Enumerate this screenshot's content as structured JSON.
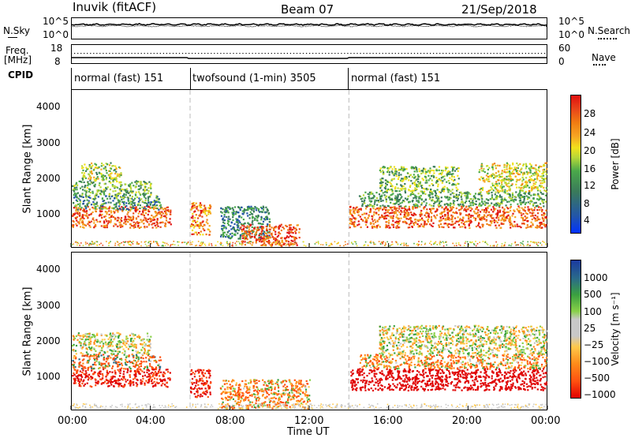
{
  "header": {
    "station": "Inuvik (fitACF)",
    "beam": "Beam 07",
    "date": "21/Sep/2018"
  },
  "top_panels": {
    "nsky_label": "N.Sky",
    "nsky_ticks": [
      "10^5",
      "10^0"
    ],
    "nsearch_label": "N.Search",
    "nsearch_ticks": [
      "10^5",
      "10^0"
    ],
    "freq_label_1": "Freq.",
    "freq_label_2": "[MHz]",
    "freq_ticks": [
      "18",
      "8"
    ],
    "nave_label": "Nave",
    "nave_ticks": [
      "60",
      "0"
    ],
    "cpid_label": "CPID"
  },
  "modes": [
    {
      "name": "normal (fast) 151",
      "start": "00:00",
      "end": "06:00"
    },
    {
      "name": "twofsound (1-min) 3505",
      "start": "06:00",
      "end": "14:00"
    },
    {
      "name": "normal (fast) 151",
      "start": "14:00",
      "end": "24:00"
    }
  ],
  "colors": {
    "power_scale": [
      "#0033ff",
      "#2255aa",
      "#3a7a5a",
      "#4aa84a",
      "#b8d838",
      "#f2e11c",
      "#f6a623",
      "#f07d12",
      "#e8461a",
      "#e0100f"
    ],
    "velocity_scale": [
      "#e00000",
      "#ff5010",
      "#ff8c1a",
      "#ffc84a",
      "#c8c8c8",
      "#c8c8c8",
      "#88d048",
      "#3aa040",
      "#2a6a8a",
      "#1a3aa0"
    ]
  },
  "chart_data": [
    {
      "type": "heatmap",
      "panel": "power",
      "ylabel": "Slant Range [km]",
      "yticks": [
        "4000",
        "3000",
        "2000",
        "1000"
      ],
      "ylim": [
        150,
        4500
      ],
      "xlabel": "Time UT",
      "xticks": [
        "00:00",
        "04:00",
        "08:00",
        "12:00",
        "16:00",
        "20:00",
        "00:00"
      ],
      "xlim": [
        0,
        24
      ],
      "colorbar_label": "Power [dB]",
      "colorbar_ticks": [
        "28",
        "24",
        "20",
        "16",
        "12",
        "8",
        "4"
      ],
      "clim": [
        0,
        30
      ],
      "scatter_bands": [
        {
          "t0": 0.0,
          "t1": 5.0,
          "r0": 700,
          "r1": 1300,
          "v0": 18,
          "v1": 30
        },
        {
          "t0": 0.0,
          "t1": 4.5,
          "r0": 1200,
          "r1": 1600,
          "v0": 4,
          "v1": 14
        },
        {
          "t0": 0.0,
          "t1": 4.0,
          "r0": 1600,
          "r1": 2000,
          "v0": 6,
          "v1": 16
        },
        {
          "t0": 0.5,
          "t1": 2.5,
          "r0": 2000,
          "r1": 2500,
          "v0": 8,
          "v1": 20
        },
        {
          "t0": 6.0,
          "t1": 7.0,
          "r0": 500,
          "r1": 1400,
          "v0": 16,
          "v1": 30
        },
        {
          "t0": 7.5,
          "t1": 10.0,
          "r0": 400,
          "r1": 1300,
          "v0": 4,
          "v1": 12
        },
        {
          "t0": 8.5,
          "t1": 11.5,
          "r0": 200,
          "r1": 800,
          "v0": 20,
          "v1": 30
        },
        {
          "t0": 14.0,
          "t1": 24.0,
          "r0": 700,
          "r1": 1300,
          "v0": 18,
          "v1": 30
        },
        {
          "t0": 14.5,
          "t1": 24.0,
          "r0": 1300,
          "r1": 1700,
          "v0": 6,
          "v1": 14
        },
        {
          "t0": 15.5,
          "t1": 19.5,
          "r0": 1700,
          "r1": 2400,
          "v0": 6,
          "v1": 18
        },
        {
          "t0": 20.5,
          "t1": 24.0,
          "r0": 1700,
          "r1": 2500,
          "v0": 10,
          "v1": 22
        }
      ]
    },
    {
      "type": "heatmap",
      "panel": "velocity",
      "ylabel": "Slant Range [km]",
      "yticks": [
        "4000",
        "3000",
        "2000",
        "1000"
      ],
      "ylim": [
        150,
        4500
      ],
      "xlabel": "Time UT",
      "xticks": [
        "00:00",
        "04:00",
        "08:00",
        "12:00",
        "16:00",
        "20:00",
        "00:00"
      ],
      "xlim": [
        0,
        24
      ],
      "colorbar_label": "Velocity [m s⁻¹]",
      "colorbar_ticks": [
        "1000",
        "500",
        "100",
        "25",
        "−25",
        "−100",
        "−500",
        "−1000"
      ],
      "clim": [
        -1000,
        1000
      ],
      "scatter_bands": [
        {
          "t0": 0.0,
          "t1": 5.0,
          "r0": 800,
          "r1": 1300,
          "v0": -500,
          "v1": -100
        },
        {
          "t0": 0.0,
          "t1": 4.5,
          "r0": 1300,
          "r1": 1700,
          "v0": -200,
          "v1": 100
        },
        {
          "t0": 0.0,
          "t1": 4.0,
          "r0": 1700,
          "r1": 2300,
          "v0": -25,
          "v1": 25
        },
        {
          "t0": 6.0,
          "t1": 7.0,
          "r0": 500,
          "r1": 1300,
          "v0": -500,
          "v1": -100
        },
        {
          "t0": 7.5,
          "t1": 12.0,
          "r0": 200,
          "r1": 1000,
          "v0": -100,
          "v1": 25
        },
        {
          "t0": 14.0,
          "t1": 24.0,
          "r0": 700,
          "r1": 1300,
          "v0": -1000,
          "v1": -300
        },
        {
          "t0": 14.5,
          "t1": 24.0,
          "r0": 1300,
          "r1": 1700,
          "v0": -100,
          "v1": 25
        },
        {
          "t0": 15.5,
          "t1": 24.0,
          "r0": 1700,
          "r1": 2500,
          "v0": -25,
          "v1": 25
        }
      ]
    }
  ]
}
